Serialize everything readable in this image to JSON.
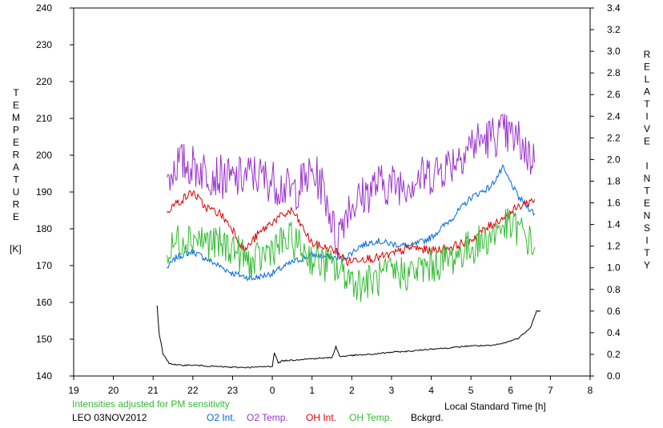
{
  "chart_data": {
    "type": "line",
    "title": "",
    "xlabel": "Local Standard Time [h]",
    "ylabel_left": "TEMPERATURE",
    "ylabel_left_unit": "[K]",
    "ylabel_right": "RELATIVE INTENSITY",
    "xlim": [
      19,
      32
    ],
    "xticks": [
      "19",
      "20",
      "21",
      "22",
      "23",
      "0",
      "1",
      "2",
      "3",
      "4",
      "5",
      "6",
      "7",
      "8"
    ],
    "ylim_left": [
      140,
      240
    ],
    "yticks_left": [
      "140",
      "150",
      "160",
      "170",
      "180",
      "190",
      "200",
      "210",
      "220",
      "230",
      "240"
    ],
    "ylim_right": [
      0.0,
      3.4
    ],
    "yticks_right": [
      "0.0",
      "0.2",
      "0.4",
      "0.6",
      "0.8",
      "1.0",
      "1.2",
      "1.4",
      "1.6",
      "1.8",
      "2.0",
      "2.2",
      "2.4",
      "2.6",
      "2.8",
      "3.0",
      "3.2",
      "3.4"
    ],
    "grid": false,
    "legend_placement": "bottom",
    "note": "Intensities adjusted for PM sensitivity",
    "station_date": "LEO 03NOV2012",
    "series": [
      {
        "name": "O2 Int.",
        "color": "#0066dd",
        "axis": "right",
        "noise": 0.03,
        "x": [
          21.35,
          21.6,
          22.0,
          22.5,
          23.0,
          23.5,
          24.0,
          24.5,
          25.0,
          25.4,
          25.8,
          26.2,
          26.6,
          27.0,
          27.5,
          28.0,
          28.5,
          29.0,
          29.5,
          29.8,
          30.2,
          30.6
        ],
        "y": [
          1.0,
          1.1,
          1.15,
          1.05,
          0.95,
          0.9,
          0.95,
          1.05,
          1.12,
          1.1,
          1.08,
          1.2,
          1.25,
          1.22,
          1.2,
          1.28,
          1.45,
          1.65,
          1.75,
          1.92,
          1.65,
          1.5
        ]
      },
      {
        "name": "O2 Temp.",
        "color": "#9933cc",
        "axis": "left",
        "noise": 6,
        "x": [
          21.35,
          21.6,
          22.0,
          22.5,
          23.0,
          23.5,
          24.0,
          24.5,
          25.0,
          25.2,
          25.4,
          25.6,
          25.9,
          26.2,
          26.6,
          27.0,
          27.5,
          28.0,
          28.5,
          29.0,
          29.5,
          29.8,
          30.2,
          30.6
        ],
        "y": [
          193,
          198,
          197,
          195,
          193,
          195,
          193,
          190,
          195,
          193,
          187,
          177,
          186,
          188,
          192,
          192,
          193,
          195,
          198,
          203,
          205,
          206,
          204,
          198
        ]
      },
      {
        "name": "OH Int.",
        "color": "#dd0000",
        "axis": "left",
        "noise": 1.2,
        "x": [
          21.35,
          21.6,
          22.0,
          22.3,
          22.7,
          23.0,
          23.3,
          23.6,
          24.0,
          24.5,
          25.0,
          25.3,
          25.6,
          25.9,
          26.2,
          26.6,
          27.0,
          27.5,
          28.0,
          28.5,
          29.0,
          29.5,
          29.8,
          30.2,
          30.6
        ],
        "y": [
          185,
          187,
          190,
          186,
          184,
          180,
          174,
          178,
          182,
          185,
          176,
          175,
          174,
          171,
          172,
          172,
          173,
          175,
          174,
          175,
          177,
          181,
          183,
          186,
          188
        ]
      },
      {
        "name": "OH Temp.",
        "color": "#33bb33",
        "axis": "left",
        "noise": 5,
        "x": [
          21.35,
          21.6,
          22.0,
          22.5,
          23.0,
          23.5,
          24.0,
          24.5,
          25.0,
          25.4,
          25.8,
          26.2,
          26.6,
          27.0,
          27.5,
          28.0,
          28.5,
          29.0,
          29.5,
          29.8,
          30.2,
          30.6
        ],
        "y": [
          172,
          177,
          178,
          176,
          175,
          170,
          175,
          177,
          172,
          170,
          168,
          165,
          166,
          168,
          168,
          170,
          172,
          175,
          178,
          181,
          180,
          175
        ]
      },
      {
        "name": "Bckgrd.",
        "color": "#000000",
        "axis": "right",
        "noise": 0.006,
        "x": [
          21.1,
          21.15,
          21.25,
          21.4,
          21.6,
          22.0,
          22.5,
          23.0,
          23.5,
          24.0,
          24.05,
          24.15,
          24.25,
          24.6,
          25.0,
          25.5,
          25.6,
          25.7,
          26.0,
          26.5,
          27.0,
          27.5,
          28.0,
          28.5,
          29.0,
          29.5,
          29.8,
          30.2,
          30.5,
          30.65,
          30.75
        ],
        "y": [
          0.65,
          0.4,
          0.2,
          0.12,
          0.1,
          0.1,
          0.09,
          0.08,
          0.08,
          0.09,
          0.22,
          0.12,
          0.14,
          0.15,
          0.16,
          0.17,
          0.27,
          0.18,
          0.19,
          0.2,
          0.22,
          0.23,
          0.25,
          0.26,
          0.28,
          0.28,
          0.3,
          0.35,
          0.45,
          0.6,
          0.6
        ]
      }
    ]
  }
}
